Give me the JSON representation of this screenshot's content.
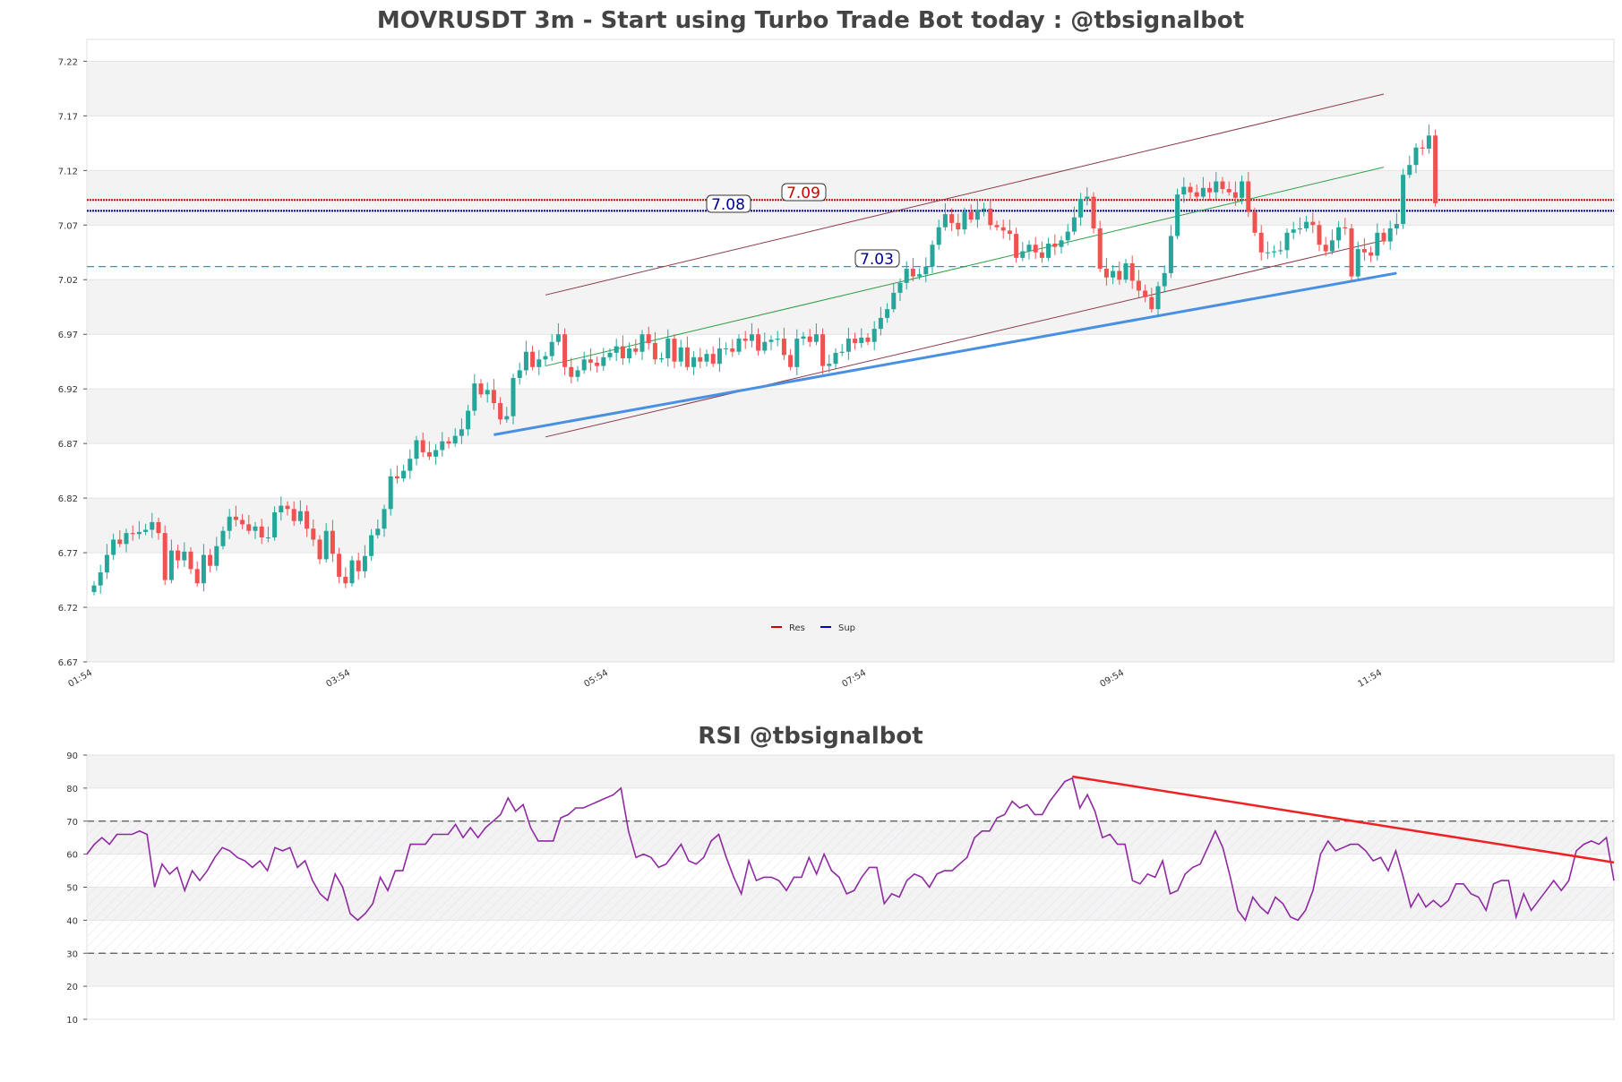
{
  "price_panel": {
    "title": "MOVRUSDT 3m - Start using Turbo Trade Bot today : @tbsignalbot",
    "y_ticks": [
      "6.67",
      "6.72",
      "6.77",
      "6.82",
      "6.87",
      "6.92",
      "6.97",
      "7.02",
      "7.07",
      "7.12",
      "7.17",
      "7.22"
    ],
    "x_ticks": [
      "01:54",
      "03:54",
      "05:54",
      "07:54",
      "09:54",
      "11:54"
    ],
    "legend": [
      {
        "label": "Res",
        "color": "#cc0000"
      },
      {
        "label": "Sup",
        "color": "#0000cc"
      }
    ],
    "level_labels": {
      "res": "7.09",
      "sup": "7.08",
      "mid": "7.03"
    }
  },
  "rsi_panel": {
    "title": "RSI @tbsignalbot",
    "y_ticks": [
      "10",
      "20",
      "30",
      "40",
      "50",
      "60",
      "70",
      "80",
      "90"
    ]
  },
  "colors": {
    "up": "#26a69a",
    "down": "#ef5350",
    "res": "#cc0000",
    "sup": "#00008b",
    "mid": "#3399bb",
    "trend_support": "#4a90e2",
    "channel": "#8b3a4a",
    "mid_channel": "#2e9e46",
    "rsi_line": "#8e2aa0",
    "rsi_trend": "#ee2222"
  },
  "chart_data": [
    {
      "type": "candlestick",
      "title": "MOVRUSDT 3m - Start using Turbo Trade Bot today : @tbsignalbot",
      "x_range": [
        "01:54",
        "11:54+"
      ],
      "interval_minutes": 3,
      "ylim": [
        6.67,
        7.24
      ],
      "grid": true,
      "legend_position": "bottom-center",
      "horizontal_levels": {
        "res": 7.093,
        "sup": 7.083,
        "mid": 7.032
      },
      "close": [
        6.74,
        6.752,
        6.768,
        6.782,
        6.778,
        6.788,
        6.787,
        6.789,
        6.791,
        6.798,
        6.788,
        6.745,
        6.772,
        6.763,
        6.771,
        6.755,
        6.742,
        6.768,
        6.758,
        6.776,
        6.79,
        6.803,
        6.8,
        6.796,
        6.79,
        6.794,
        6.784,
        6.784,
        6.807,
        6.813,
        6.81,
        6.799,
        6.808,
        6.792,
        6.782,
        6.764,
        6.79,
        6.769,
        6.748,
        6.742,
        6.763,
        6.753,
        6.767,
        6.786,
        6.792,
        6.81,
        6.84,
        6.838,
        6.845,
        6.856,
        6.873,
        6.862,
        6.858,
        6.864,
        6.872,
        6.87,
        6.877,
        6.883,
        6.9,
        6.925,
        6.915,
        6.919,
        6.907,
        6.892,
        6.895,
        6.93,
        6.937,
        6.954,
        6.94,
        6.947,
        6.95,
        6.963,
        6.97,
        6.94,
        6.931,
        6.937,
        6.947,
        6.944,
        6.941,
        6.949,
        6.953,
        6.959,
        6.948,
        6.957,
        6.954,
        6.97,
        6.962,
        6.947,
        6.948,
        6.966,
        6.945,
        6.958,
        6.94,
        6.949,
        6.945,
        6.952,
        6.943,
        6.957,
        6.957,
        6.954,
        6.966,
        6.964,
        6.97,
        6.955,
        6.963,
        6.965,
        6.966,
        6.951,
        6.94,
        6.966,
        6.968,
        6.963,
        6.97,
        6.941,
        6.943,
        6.953,
        6.954,
        6.966,
        6.962,
        6.967,
        6.963,
        6.975,
        6.985,
        6.993,
        7.008,
        7.017,
        7.03,
        7.023,
        7.025,
        7.032,
        7.052,
        7.068,
        7.08,
        7.072,
        7.066,
        7.082,
        7.075,
        7.084,
        7.085,
        7.07,
        7.068,
        7.065,
        7.062,
        7.04,
        7.046,
        7.052,
        7.045,
        7.04,
        7.053,
        7.05,
        7.056,
        7.064,
        7.077,
        7.094,
        7.096,
        7.067,
        7.03,
        7.022,
        7.028,
        7.02,
        7.035,
        7.019,
        7.01,
        7.004,
        6.993,
        7.014,
        7.026,
        7.06,
        7.098,
        7.105,
        7.1,
        7.096,
        7.104,
        7.1,
        7.11,
        7.103,
        7.1,
        7.095,
        7.11,
        7.082,
        7.063,
        7.045,
        7.045,
        7.046,
        7.047,
        7.063,
        7.066,
        7.067,
        7.073,
        7.07,
        7.052,
        7.046,
        7.056,
        7.068,
        7.067,
        7.023,
        7.048,
        7.045,
        7.042,
        7.063,
        7.055,
        7.067,
        7.071,
        7.116,
        7.125,
        7.141,
        7.14,
        7.152,
        7.09
      ],
      "series": []
    },
    {
      "type": "line",
      "title": "RSI @tbsignalbot",
      "ylim": [
        10,
        90
      ],
      "reference_lines": [
        30,
        70
      ],
      "series": [
        {
          "values": [
            60,
            63,
            65,
            63,
            66,
            66,
            66,
            67,
            66,
            50,
            57,
            54,
            56,
            49,
            55,
            52,
            55,
            59,
            62,
            61,
            59,
            58,
            56,
            58,
            55,
            62,
            61,
            62,
            56,
            58,
            52,
            48,
            46,
            54,
            50,
            42,
            40,
            42,
            45,
            53,
            49,
            55,
            55,
            63,
            63,
            63,
            66,
            66,
            66,
            69,
            65,
            68,
            65,
            68,
            70,
            72,
            77,
            73,
            75,
            68,
            64,
            64,
            64,
            71,
            72,
            74,
            74,
            75,
            76,
            77,
            78,
            80,
            67,
            59,
            60,
            59,
            56,
            57,
            60,
            63,
            58,
            57,
            59,
            64,
            66,
            59,
            53,
            48,
            58,
            52,
            53,
            53,
            52,
            49,
            53,
            53,
            59,
            54,
            60,
            55,
            53,
            48,
            49,
            53,
            56,
            56,
            45,
            48,
            47,
            52,
            54,
            53,
            50,
            54,
            55,
            55,
            57,
            59,
            65,
            67,
            67,
            71,
            72,
            76,
            74,
            75,
            72,
            72,
            76,
            79,
            82,
            83,
            74,
            78,
            73,
            65,
            66,
            63,
            63,
            52,
            51,
            54,
            53,
            58,
            48,
            49,
            54,
            56,
            57,
            62,
            67,
            62,
            53,
            43,
            40,
            47,
            44,
            42,
            47,
            45,
            41,
            40,
            43,
            49,
            60,
            64,
            61,
            62,
            63,
            63,
            61,
            58,
            59,
            55,
            61,
            53,
            44,
            48,
            44,
            46,
            44,
            46,
            51,
            51,
            48,
            47,
            43,
            51,
            52,
            52,
            41,
            48,
            43,
            46,
            49,
            52,
            49,
            52,
            61,
            63,
            64,
            63,
            65,
            52
          ]
        },
        {
          "name": "",
          "type": "trendline",
          "values": [
            83.5,
            57.5
          ]
        }
      ]
    }
  ]
}
